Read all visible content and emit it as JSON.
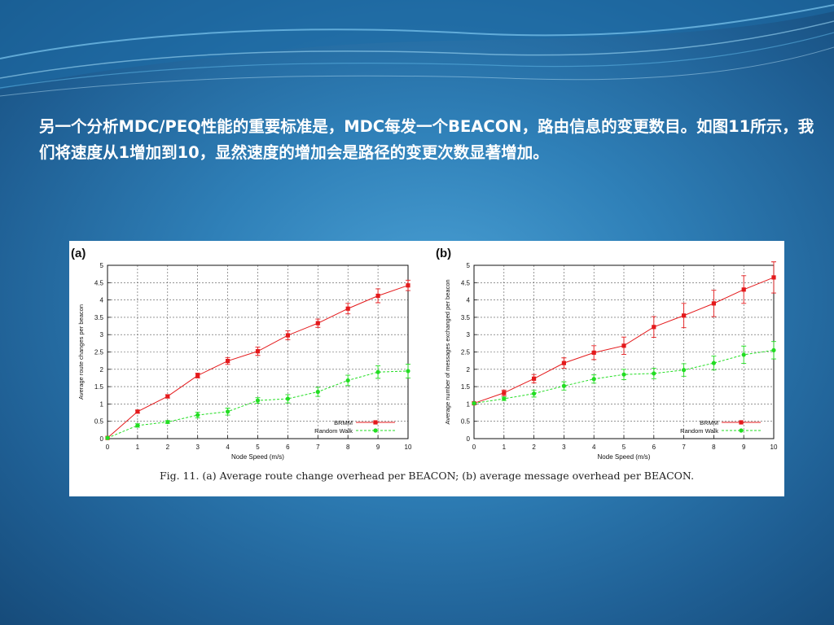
{
  "slide": {
    "paragraph": "另一个分析MDC/PEQ性能的重要标准是，MDC每发一个BEACON，路由信息的变更数目。如图11所示，我们将速度从1增加到10，显然速度的增加会是路径的变更次数显著增加。"
  },
  "figure": {
    "caption": "Fig. 11.  (a) Average route change overhead per BEACON; (b) average message overhead per BEACON."
  },
  "colors": {
    "brmm": "#e41a1c",
    "random_walk": "#22dd22"
  },
  "chart_data": [
    {
      "type": "line",
      "panel_label": "(a)",
      "xlabel": "Node Speed (m/s)",
      "ylabel": "Average route changes per beacon",
      "xlim": [
        0,
        10
      ],
      "ylim": [
        0,
        5
      ],
      "xticks": [
        "0",
        "1",
        "2",
        "3",
        "4",
        "5",
        "6",
        "7",
        "8",
        "9",
        "10"
      ],
      "yticks": [
        "0",
        "0.5",
        "1",
        "1.5",
        "2",
        "2.5",
        "3",
        "3.5",
        "4",
        "4.5",
        "5"
      ],
      "grid": true,
      "legend": "bottom-right",
      "series": [
        {
          "name": "BRMM",
          "x": [
            0,
            1,
            2,
            3,
            4,
            5,
            6,
            7,
            8,
            9,
            10
          ],
          "y": [
            0.02,
            0.78,
            1.22,
            1.82,
            2.24,
            2.52,
            2.98,
            3.33,
            3.75,
            4.12,
            4.42
          ],
          "err": [
            0,
            0.04,
            0.05,
            0.07,
            0.1,
            0.12,
            0.13,
            0.12,
            0.15,
            0.2,
            0.15
          ]
        },
        {
          "name": "Random Walk",
          "x": [
            0,
            1,
            2,
            3,
            4,
            5,
            6,
            7,
            8,
            9,
            10
          ],
          "y": [
            0.02,
            0.38,
            0.48,
            0.68,
            0.78,
            1.1,
            1.15,
            1.35,
            1.68,
            1.92,
            1.95
          ],
          "err": [
            0,
            0.05,
            0.04,
            0.08,
            0.1,
            0.08,
            0.12,
            0.13,
            0.15,
            0.18,
            0.2
          ]
        }
      ]
    },
    {
      "type": "line",
      "panel_label": "(b)",
      "xlabel": "Node Speed (m/s)",
      "ylabel": "Average number of messages exchanged per beacon",
      "xlim": [
        0,
        10
      ],
      "ylim": [
        0,
        5
      ],
      "xticks": [
        "0",
        "1",
        "2",
        "3",
        "4",
        "5",
        "6",
        "7",
        "8",
        "9",
        "10"
      ],
      "yticks": [
        "0",
        "0.5",
        "1",
        "1.5",
        "2",
        "2.5",
        "3",
        "3.5",
        "4",
        "4.5",
        "5"
      ],
      "grid": true,
      "legend": "bottom-right",
      "series": [
        {
          "name": "BRMM",
          "x": [
            0,
            1,
            2,
            3,
            4,
            5,
            6,
            7,
            8,
            9,
            10
          ],
          "y": [
            1.02,
            1.32,
            1.73,
            2.18,
            2.48,
            2.68,
            3.22,
            3.55,
            3.9,
            4.3,
            4.65
          ],
          "err": [
            0,
            0.08,
            0.12,
            0.15,
            0.2,
            0.25,
            0.3,
            0.35,
            0.38,
            0.4,
            0.45
          ]
        },
        {
          "name": "Random Walk",
          "x": [
            0,
            1,
            2,
            3,
            4,
            5,
            6,
            7,
            8,
            9,
            10
          ],
          "y": [
            1.02,
            1.15,
            1.3,
            1.52,
            1.72,
            1.85,
            1.88,
            1.98,
            2.18,
            2.42,
            2.55
          ],
          "err": [
            0,
            0.05,
            0.1,
            0.12,
            0.12,
            0.15,
            0.15,
            0.18,
            0.2,
            0.25,
            0.25
          ]
        }
      ]
    }
  ]
}
